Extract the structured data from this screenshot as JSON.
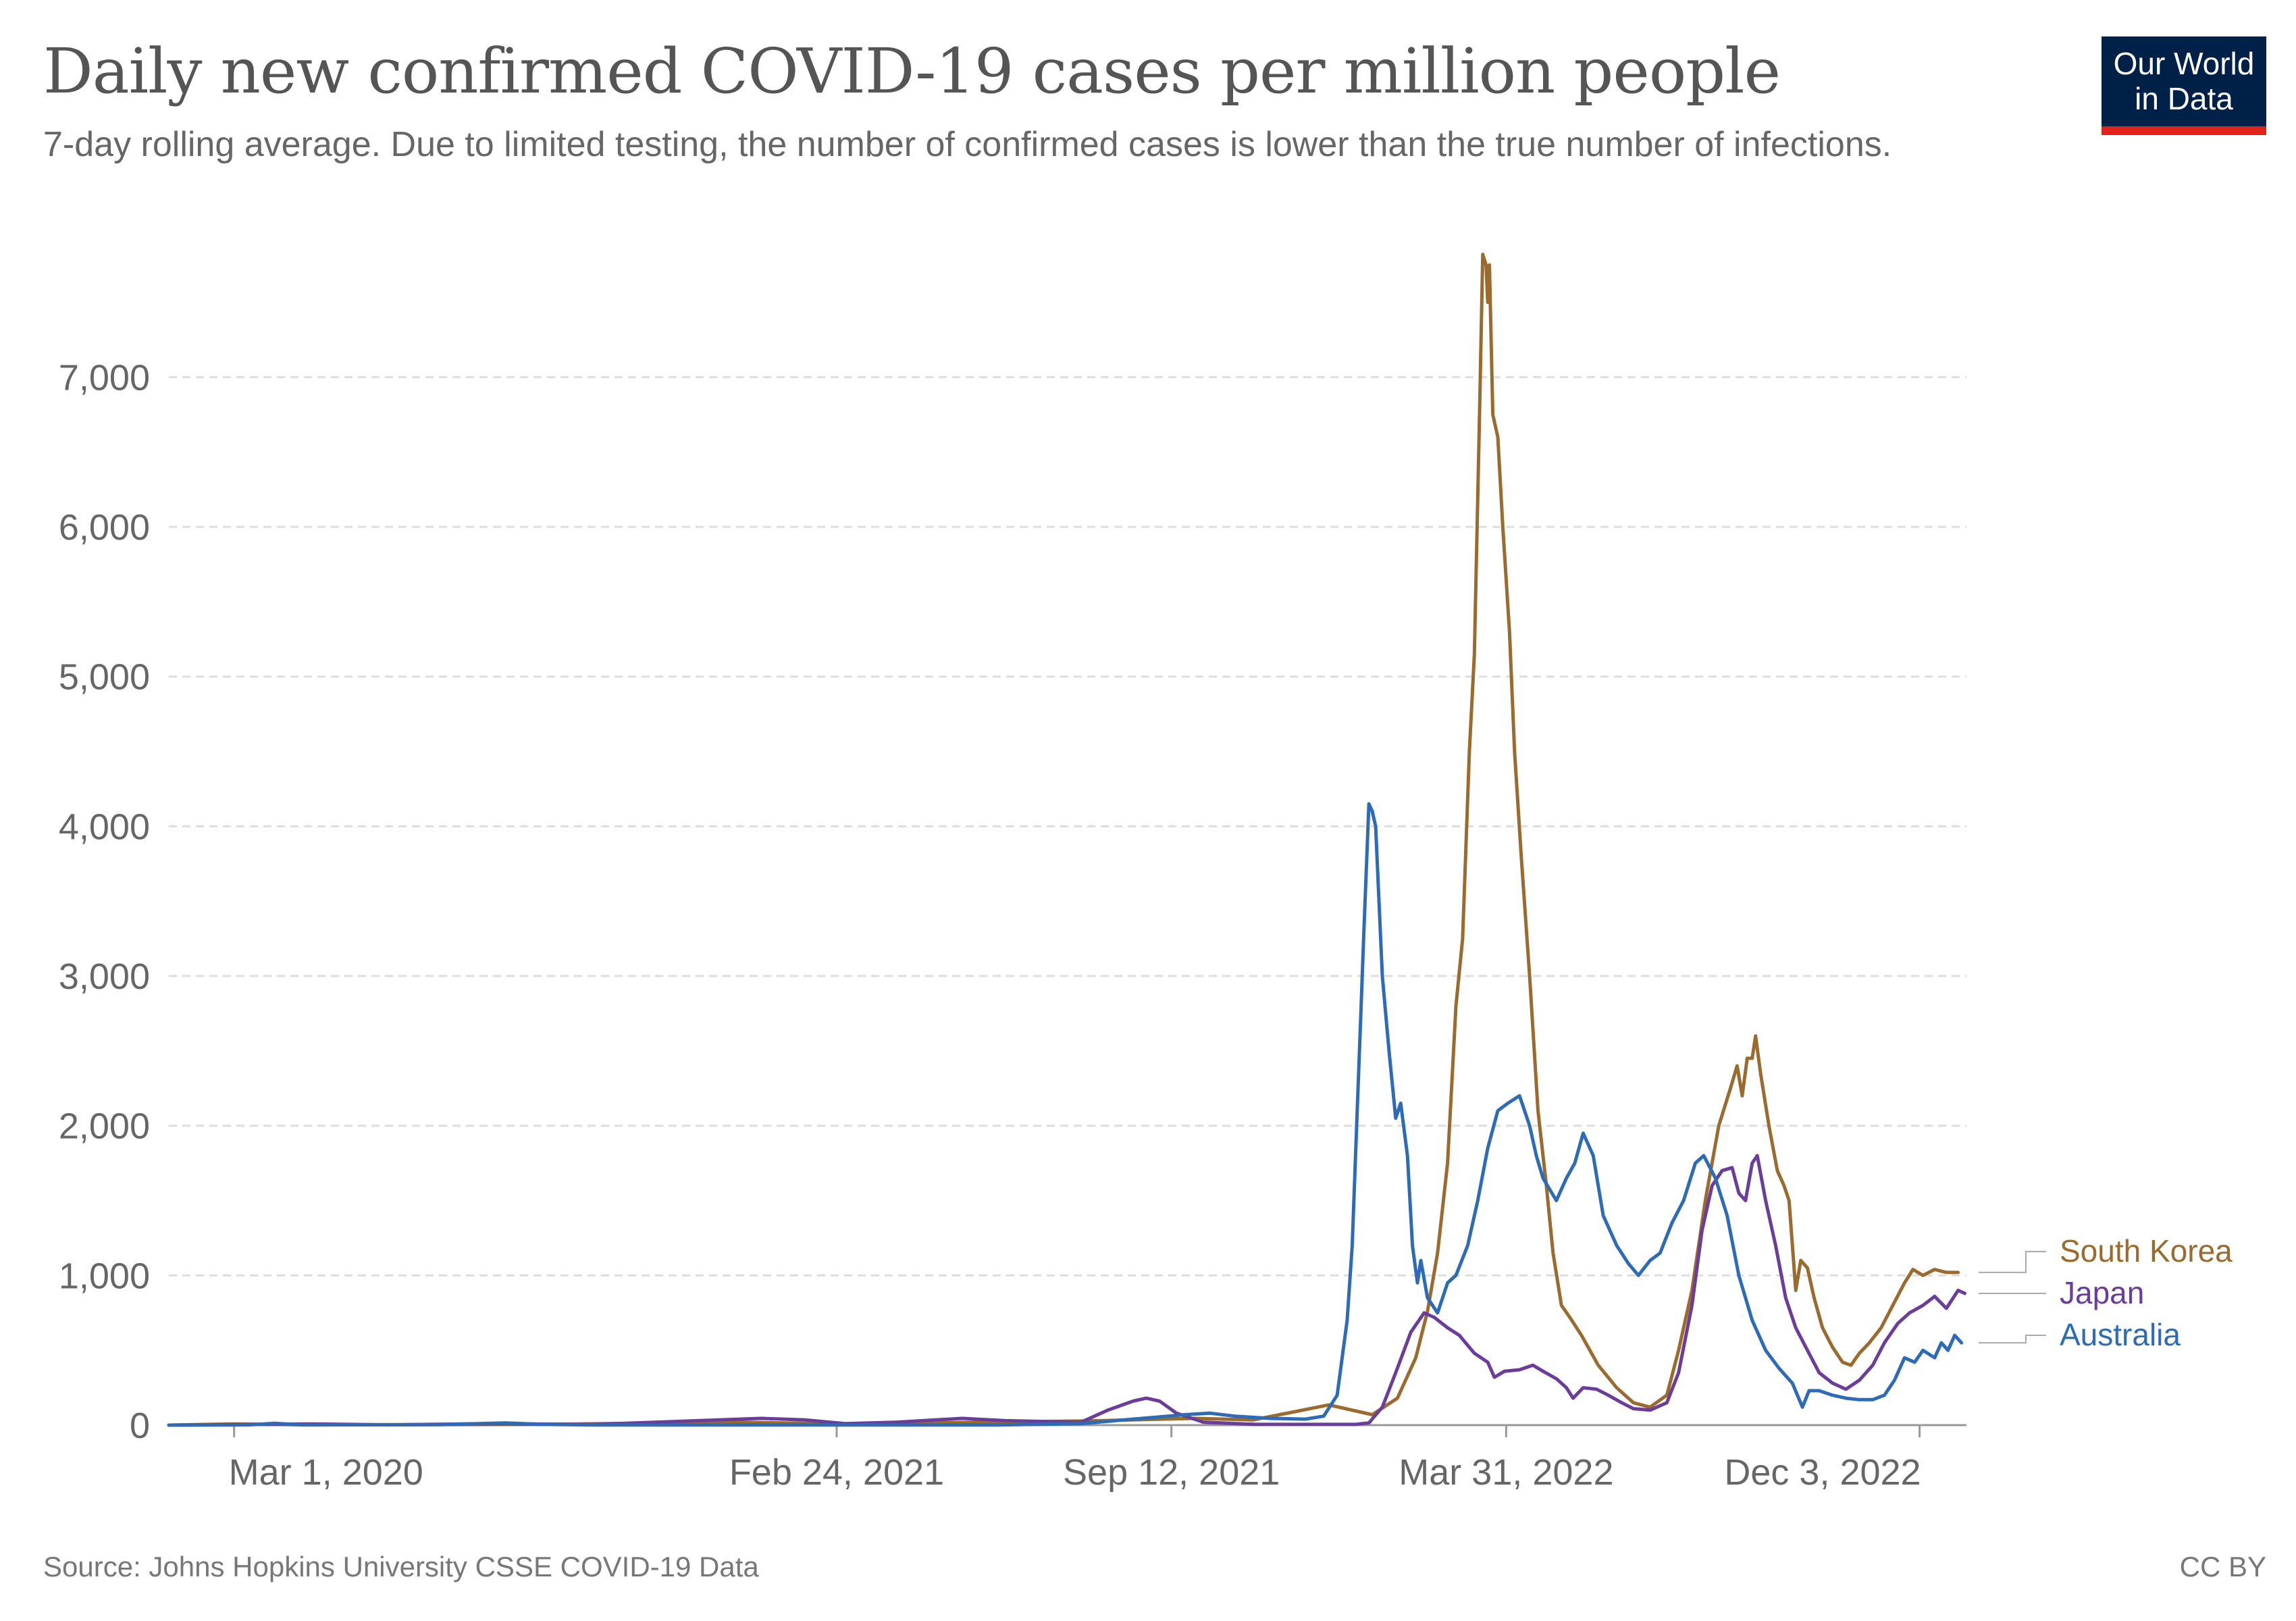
{
  "header": {
    "title": "Daily new confirmed COVID-19 cases per million people",
    "subtitle": "7-day rolling average. Due to limited testing, the number of confirmed cases is lower than the true number of infections."
  },
  "logo": {
    "line1": "Our World",
    "line2": "in Data",
    "bg_color": "#002147",
    "accent_color": "#e2231a"
  },
  "footer": {
    "source": "Source: Johns Hopkins University CSSE COVID-19 Data",
    "license": "CC BY"
  },
  "chart_data": {
    "type": "line",
    "title": "Daily new confirmed COVID-19 cases per million people",
    "subtitle": "7-day rolling average. Due to limited testing, the number of confirmed cases is lower than the true number of infections.",
    "xlabel": "",
    "ylabel": "",
    "x_range": [
      "2020-01-22",
      "2022-12-31"
    ],
    "x_ticks": [
      {
        "date": "2020-03-01",
        "label": "Mar 1, 2020"
      },
      {
        "date": "2021-02-24",
        "label": "Feb 24, 2021"
      },
      {
        "date": "2021-09-12",
        "label": "Sep 12, 2021"
      },
      {
        "date": "2022-03-31",
        "label": "Mar 31, 2022"
      },
      {
        "date": "2022-12-03",
        "label": "Dec 3, 2022"
      }
    ],
    "ylim": [
      0,
      7850
    ],
    "y_ticks": [
      0,
      1000,
      2000,
      3000,
      4000,
      5000,
      6000,
      7000
    ],
    "y_tick_labels": [
      "0",
      "1,000",
      "2,000",
      "3,000",
      "4,000",
      "5,000",
      "6,000",
      "7,000"
    ],
    "grid": "horizontal-dashed",
    "legend": "right-end-labels",
    "series": [
      {
        "name": "South Korea",
        "color": "#9a6a2e",
        "points": [
          [
            "2020-01-22",
            0
          ],
          [
            "2020-03-01",
            8
          ],
          [
            "2020-04-15",
            2
          ],
          [
            "2020-09-01",
            5
          ],
          [
            "2020-12-25",
            20
          ],
          [
            "2021-03-01",
            8
          ],
          [
            "2021-07-25",
            28
          ],
          [
            "2021-09-25",
            45
          ],
          [
            "2021-10-31",
            35
          ],
          [
            "2021-12-15",
            135
          ],
          [
            "2022-01-10",
            70
          ],
          [
            "2022-01-25",
            180
          ],
          [
            "2022-02-05",
            450
          ],
          [
            "2022-02-12",
            760
          ],
          [
            "2022-02-18",
            1150
          ],
          [
            "2022-02-24",
            1750
          ],
          [
            "2022-03-01",
            2800
          ],
          [
            "2022-03-05",
            3250
          ],
          [
            "2022-03-09",
            4500
          ],
          [
            "2022-03-12",
            5150
          ],
          [
            "2022-03-15",
            6700
          ],
          [
            "2022-03-17",
            7820
          ],
          [
            "2022-03-19",
            7750
          ],
          [
            "2022-03-20",
            7500
          ],
          [
            "2022-03-21",
            7750
          ],
          [
            "2022-03-23",
            6750
          ],
          [
            "2022-03-26",
            6600
          ],
          [
            "2022-03-29",
            6000
          ],
          [
            "2022-04-02",
            5300
          ],
          [
            "2022-04-05",
            4500
          ],
          [
            "2022-04-09",
            3800
          ],
          [
            "2022-04-14",
            3000
          ],
          [
            "2022-04-19",
            2100
          ],
          [
            "2022-04-24",
            1600
          ],
          [
            "2022-04-28",
            1150
          ],
          [
            "2022-05-03",
            800
          ],
          [
            "2022-05-08",
            720
          ],
          [
            "2022-05-15",
            600
          ],
          [
            "2022-05-25",
            400
          ],
          [
            "2022-06-05",
            250
          ],
          [
            "2022-06-15",
            150
          ],
          [
            "2022-06-25",
            120
          ],
          [
            "2022-07-05",
            200
          ],
          [
            "2022-07-12",
            500
          ],
          [
            "2022-07-20",
            900
          ],
          [
            "2022-07-28",
            1500
          ],
          [
            "2022-08-05",
            2000
          ],
          [
            "2022-08-12",
            2250
          ],
          [
            "2022-08-16",
            2400
          ],
          [
            "2022-08-19",
            2200
          ],
          [
            "2022-08-22",
            2450
          ],
          [
            "2022-08-25",
            2450
          ],
          [
            "2022-08-27",
            2600
          ],
          [
            "2022-08-30",
            2350
          ],
          [
            "2022-09-04",
            2000
          ],
          [
            "2022-09-09",
            1700
          ],
          [
            "2022-09-13",
            1600
          ],
          [
            "2022-09-16",
            1500
          ],
          [
            "2022-09-20",
            900
          ],
          [
            "2022-09-23",
            1100
          ],
          [
            "2022-09-27",
            1050
          ],
          [
            "2022-10-01",
            850
          ],
          [
            "2022-10-06",
            650
          ],
          [
            "2022-10-12",
            520
          ],
          [
            "2022-10-18",
            420
          ],
          [
            "2022-10-23",
            400
          ],
          [
            "2022-10-28",
            480
          ],
          [
            "2022-11-03",
            550
          ],
          [
            "2022-11-10",
            650
          ],
          [
            "2022-11-17",
            800
          ],
          [
            "2022-11-24",
            950
          ],
          [
            "2022-11-29",
            1040
          ],
          [
            "2022-12-05",
            1000
          ],
          [
            "2022-12-12",
            1040
          ],
          [
            "2022-12-19",
            1020
          ],
          [
            "2022-12-26",
            1020
          ]
        ]
      },
      {
        "name": "Japan",
        "color": "#6a3d9a",
        "points": [
          [
            "2020-01-22",
            0
          ],
          [
            "2020-03-20",
            5
          ],
          [
            "2020-04-15",
            8
          ],
          [
            "2020-06-01",
            2
          ],
          [
            "2020-08-05",
            10
          ],
          [
            "2020-10-01",
            4
          ],
          [
            "2021-01-10",
            45
          ],
          [
            "2021-02-05",
            35
          ],
          [
            "2021-03-01",
            10
          ],
          [
            "2021-04-01",
            20
          ],
          [
            "2021-05-10",
            45
          ],
          [
            "2021-06-05",
            30
          ],
          [
            "2021-07-20",
            20
          ],
          [
            "2021-08-05",
            100
          ],
          [
            "2021-08-20",
            160
          ],
          [
            "2021-08-28",
            180
          ],
          [
            "2021-09-05",
            160
          ],
          [
            "2021-09-15",
            80
          ],
          [
            "2021-10-01",
            20
          ],
          [
            "2021-11-01",
            5
          ],
          [
            "2021-12-31",
            5
          ],
          [
            "2022-01-08",
            15
          ],
          [
            "2022-01-16",
            120
          ],
          [
            "2022-01-24",
            350
          ],
          [
            "2022-02-02",
            620
          ],
          [
            "2022-02-10",
            750
          ],
          [
            "2022-02-16",
            720
          ],
          [
            "2022-02-24",
            650
          ],
          [
            "2022-03-03",
            600
          ],
          [
            "2022-03-12",
            480
          ],
          [
            "2022-03-20",
            420
          ],
          [
            "2022-03-24",
            320
          ],
          [
            "2022-03-30",
            360
          ],
          [
            "2022-04-08",
            370
          ],
          [
            "2022-04-16",
            400
          ],
          [
            "2022-04-22",
            360
          ],
          [
            "2022-04-30",
            310
          ],
          [
            "2022-05-06",
            250
          ],
          [
            "2022-05-10",
            180
          ],
          [
            "2022-05-16",
            250
          ],
          [
            "2022-05-24",
            240
          ],
          [
            "2022-05-31",
            200
          ],
          [
            "2022-06-08",
            150
          ],
          [
            "2022-06-15",
            110
          ],
          [
            "2022-06-25",
            100
          ],
          [
            "2022-07-05",
            150
          ],
          [
            "2022-07-12",
            350
          ],
          [
            "2022-07-20",
            800
          ],
          [
            "2022-07-26",
            1300
          ],
          [
            "2022-08-01",
            1600
          ],
          [
            "2022-08-07",
            1700
          ],
          [
            "2022-08-13",
            1720
          ],
          [
            "2022-08-17",
            1550
          ],
          [
            "2022-08-21",
            1500
          ],
          [
            "2022-08-25",
            1750
          ],
          [
            "2022-08-28",
            1800
          ],
          [
            "2022-09-02",
            1500
          ],
          [
            "2022-09-08",
            1200
          ],
          [
            "2022-09-14",
            850
          ],
          [
            "2022-09-20",
            650
          ],
          [
            "2022-09-27",
            500
          ],
          [
            "2022-10-04",
            350
          ],
          [
            "2022-10-12",
            280
          ],
          [
            "2022-10-20",
            240
          ],
          [
            "2022-10-28",
            300
          ],
          [
            "2022-11-05",
            400
          ],
          [
            "2022-11-12",
            550
          ],
          [
            "2022-11-20",
            680
          ],
          [
            "2022-11-27",
            750
          ],
          [
            "2022-12-05",
            800
          ],
          [
            "2022-12-12",
            860
          ],
          [
            "2022-12-19",
            780
          ],
          [
            "2022-12-26",
            900
          ],
          [
            "2022-12-30",
            880
          ]
        ]
      },
      {
        "name": "Australia",
        "color": "#2e6bb6",
        "points": [
          [
            "2020-01-22",
            0
          ],
          [
            "2020-03-10",
            2
          ],
          [
            "2020-03-25",
            12
          ],
          [
            "2020-04-10",
            2
          ],
          [
            "2020-07-01",
            3
          ],
          [
            "2020-07-25",
            10
          ],
          [
            "2020-08-10",
            15
          ],
          [
            "2020-09-01",
            5
          ],
          [
            "2020-10-01",
            1
          ],
          [
            "2021-06-01",
            1
          ],
          [
            "2021-07-20",
            10
          ],
          [
            "2021-08-20",
            40
          ],
          [
            "2021-09-10",
            60
          ],
          [
            "2021-09-20",
            70
          ],
          [
            "2021-10-05",
            80
          ],
          [
            "2021-10-20",
            60
          ],
          [
            "2021-11-10",
            45
          ],
          [
            "2021-12-01",
            40
          ],
          [
            "2021-12-12",
            60
          ],
          [
            "2021-12-20",
            200
          ],
          [
            "2021-12-26",
            700
          ],
          [
            "2021-12-29",
            1200
          ],
          [
            "2022-01-01",
            2100
          ],
          [
            "2022-01-03",
            2700
          ],
          [
            "2022-01-05",
            3300
          ],
          [
            "2022-01-08",
            4150
          ],
          [
            "2022-01-10",
            4100
          ],
          [
            "2022-01-12",
            4000
          ],
          [
            "2022-01-16",
            3000
          ],
          [
            "2022-01-20",
            2500
          ],
          [
            "2022-01-24",
            2050
          ],
          [
            "2022-01-27",
            2150
          ],
          [
            "2022-01-31",
            1800
          ],
          [
            "2022-02-03",
            1200
          ],
          [
            "2022-02-06",
            950
          ],
          [
            "2022-02-08",
            1100
          ],
          [
            "2022-02-12",
            850
          ],
          [
            "2022-02-18",
            750
          ],
          [
            "2022-02-24",
            950
          ],
          [
            "2022-03-01",
            1000
          ],
          [
            "2022-03-08",
            1200
          ],
          [
            "2022-03-14",
            1500
          ],
          [
            "2022-03-20",
            1850
          ],
          [
            "2022-03-26",
            2100
          ],
          [
            "2022-04-01",
            2150
          ],
          [
            "2022-04-08",
            2200
          ],
          [
            "2022-04-14",
            2000
          ],
          [
            "2022-04-18",
            1800
          ],
          [
            "2022-04-22",
            1650
          ],
          [
            "2022-04-30",
            1500
          ],
          [
            "2022-05-06",
            1650
          ],
          [
            "2022-05-11",
            1750
          ],
          [
            "2022-05-16",
            1950
          ],
          [
            "2022-05-22",
            1800
          ],
          [
            "2022-05-28",
            1400
          ],
          [
            "2022-06-05",
            1200
          ],
          [
            "2022-06-12",
            1080
          ],
          [
            "2022-06-18",
            1000
          ],
          [
            "2022-06-25",
            1100
          ],
          [
            "2022-07-01",
            1150
          ],
          [
            "2022-07-08",
            1350
          ],
          [
            "2022-07-15",
            1500
          ],
          [
            "2022-07-22",
            1750
          ],
          [
            "2022-07-27",
            1800
          ],
          [
            "2022-08-03",
            1650
          ],
          [
            "2022-08-10",
            1400
          ],
          [
            "2022-08-17",
            1000
          ],
          [
            "2022-08-25",
            700
          ],
          [
            "2022-09-02",
            500
          ],
          [
            "2022-09-10",
            380
          ],
          [
            "2022-09-18",
            280
          ],
          [
            "2022-09-24",
            120
          ],
          [
            "2022-09-28",
            230
          ],
          [
            "2022-10-04",
            230
          ],
          [
            "2022-10-12",
            200
          ],
          [
            "2022-10-20",
            180
          ],
          [
            "2022-10-28",
            170
          ],
          [
            "2022-11-05",
            170
          ],
          [
            "2022-11-12",
            200
          ],
          [
            "2022-11-18",
            300
          ],
          [
            "2022-11-24",
            450
          ],
          [
            "2022-11-30",
            420
          ],
          [
            "2022-12-05",
            500
          ],
          [
            "2022-12-12",
            450
          ],
          [
            "2022-12-16",
            550
          ],
          [
            "2022-12-20",
            500
          ],
          [
            "2022-12-24",
            600
          ],
          [
            "2022-12-28",
            550
          ]
        ]
      }
    ]
  }
}
